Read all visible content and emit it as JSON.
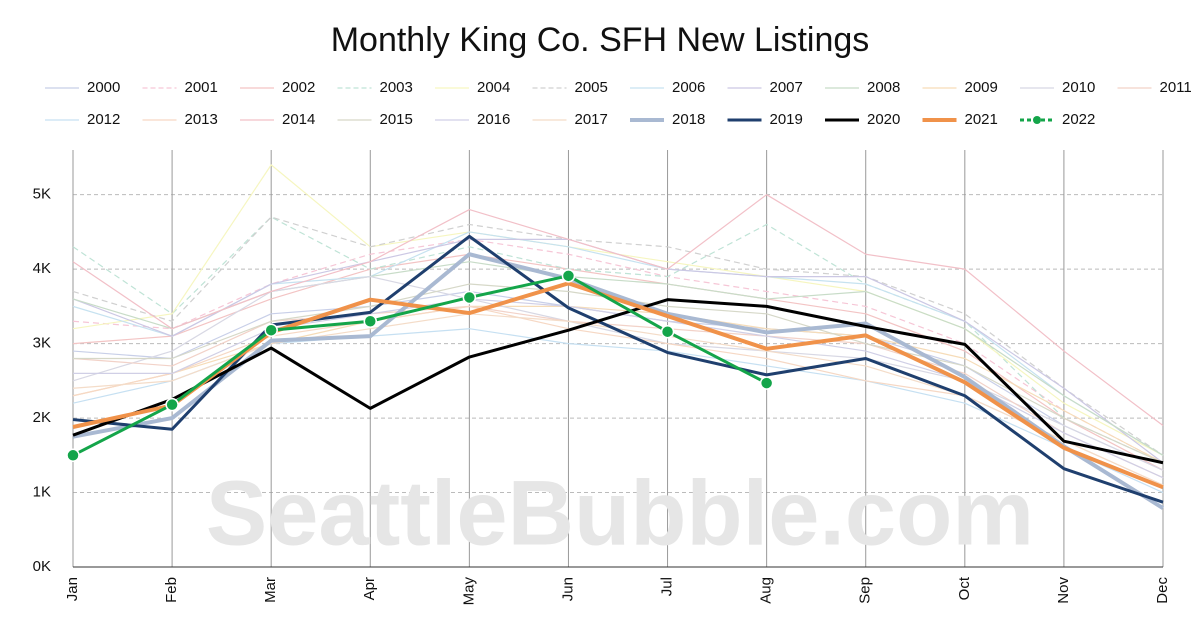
{
  "chart_data": {
    "type": "line",
    "title": "Monthly King Co. SFH New Listings",
    "watermark": "SeattleBubble.com",
    "categories": [
      "Jan",
      "Feb",
      "Mar",
      "Apr",
      "May",
      "Jun",
      "Jul",
      "Aug",
      "Sep",
      "Oct",
      "Nov",
      "Dec"
    ],
    "ylim": [
      0,
      5600
    ],
    "yticks": [
      {
        "value": 0,
        "label": "0K"
      },
      {
        "value": 1000,
        "label": "1K"
      },
      {
        "value": 2000,
        "label": "2K"
      },
      {
        "value": 3000,
        "label": "3K"
      },
      {
        "value": 4000,
        "label": "4K"
      },
      {
        "value": 5000,
        "label": "5K"
      }
    ],
    "grid": true,
    "series": [
      {
        "name": "2000",
        "color": "#c8cfe8",
        "width": 1.2,
        "values": [
          2900,
          2800,
          3400,
          3500,
          3700,
          3500,
          3300,
          3200,
          3100,
          2700,
          1900,
          1300
        ]
      },
      {
        "name": "2001",
        "color": "#f6c6d6",
        "width": 1.2,
        "dashed": true,
        "values": [
          3300,
          3200,
          3800,
          4200,
          4400,
          4200,
          3900,
          3700,
          3500,
          3000,
          2100,
          1400
        ]
      },
      {
        "name": "2002",
        "color": "#f3c4c4",
        "width": 1.2,
        "values": [
          3000,
          3100,
          3600,
          4000,
          4200,
          4000,
          3800,
          3600,
          3400,
          2900,
          2000,
          1300
        ]
      },
      {
        "name": "2003",
        "color": "#bfe3d6",
        "width": 1.2,
        "dashed": true,
        "values": [
          4300,
          3400,
          4700,
          4000,
          4300,
          4000,
          3900,
          4600,
          3800,
          3300,
          2000,
          1400
        ]
      },
      {
        "name": "2004",
        "color": "#f6f6c0",
        "width": 1.2,
        "values": [
          3200,
          3400,
          5400,
          4300,
          4500,
          4300,
          4100,
          3900,
          3700,
          3200,
          2200,
          1500
        ]
      },
      {
        "name": "2005",
        "color": "#d0d0d0",
        "width": 1.2,
        "dashed": true,
        "values": [
          3700,
          3300,
          4700,
          4300,
          4600,
          4400,
          4300,
          4000,
          3900,
          3400,
          2400,
          1500
        ]
      },
      {
        "name": "2006",
        "color": "#c6e2f0",
        "width": 1.2,
        "values": [
          3500,
          3100,
          3800,
          3900,
          4500,
          4300,
          4000,
          3900,
          3800,
          3300,
          2300,
          1500
        ]
      },
      {
        "name": "2007",
        "color": "#ccc8e4",
        "width": 1.2,
        "values": [
          3600,
          3100,
          3800,
          4100,
          4400,
          4400,
          4000,
          3900,
          3900,
          3300,
          2400,
          1400
        ]
      },
      {
        "name": "2008",
        "color": "#c8dcc8",
        "width": 1.2,
        "values": [
          3600,
          3200,
          3700,
          3900,
          4100,
          3900,
          3800,
          3600,
          3700,
          3200,
          2300,
          1500
        ]
      },
      {
        "name": "2009",
        "color": "#f6dcb8",
        "width": 1.2,
        "values": [
          2300,
          2600,
          3000,
          3300,
          3500,
          3500,
          3400,
          3200,
          3100,
          2800,
          2100,
          1400
        ]
      },
      {
        "name": "2010",
        "color": "#d8d8e4",
        "width": 1.2,
        "values": [
          2500,
          2900,
          3700,
          3900,
          3600,
          3300,
          3000,
          2900,
          2800,
          2500,
          1900,
          1300
        ]
      },
      {
        "name": "2011",
        "color": "#f2d2c8",
        "width": 1.2,
        "values": [
          2800,
          2700,
          3300,
          3400,
          3500,
          3300,
          3200,
          3100,
          3000,
          2600,
          1800,
          1200
        ]
      },
      {
        "name": "2012",
        "color": "#c6e0f2",
        "width": 1.2,
        "values": [
          2200,
          2500,
          3000,
          3100,
          3200,
          3000,
          2900,
          2700,
          2500,
          2200,
          1600,
          1000
        ]
      },
      {
        "name": "2013",
        "color": "#f6d8c4",
        "width": 1.2,
        "values": [
          2300,
          2600,
          3100,
          3300,
          3500,
          3200,
          3000,
          2800,
          2500,
          2300,
          1700,
          1100
        ]
      },
      {
        "name": "2014",
        "color": "#f2c0c8",
        "width": 1.2,
        "values": [
          4100,
          3200,
          3700,
          4100,
          4800,
          4400,
          4000,
          5000,
          4200,
          4000,
          2900,
          1900
        ]
      },
      {
        "name": "2015",
        "color": "#d6d8c8",
        "width": 1.2,
        "values": [
          2800,
          2800,
          3300,
          3500,
          3800,
          3700,
          3500,
          3400,
          3000,
          2700,
          2000,
          1400
        ]
      },
      {
        "name": "2016",
        "color": "#d0cfe6",
        "width": 1.2,
        "values": [
          2600,
          2600,
          3200,
          3400,
          3600,
          3500,
          3300,
          3100,
          2900,
          2500,
          1800,
          1200
        ]
      },
      {
        "name": "2017",
        "color": "#f4dcc8",
        "width": 1.2,
        "values": [
          2400,
          2500,
          3000,
          3200,
          3400,
          3300,
          3100,
          2900,
          2700,
          2300,
          1700,
          1100
        ]
      },
      {
        "name": "2018",
        "color": "#a9b9d2",
        "width": 4,
        "values": [
          1750,
          2000,
          3040,
          3100,
          4200,
          3870,
          3400,
          3150,
          3270,
          2550,
          1620,
          790
        ]
      },
      {
        "name": "2019",
        "color": "#1f3f6e",
        "width": 3,
        "values": [
          1980,
          1850,
          3250,
          3420,
          4440,
          3480,
          2880,
          2580,
          2800,
          2300,
          1320,
          870
        ]
      },
      {
        "name": "2020",
        "color": "#000000",
        "width": 3,
        "values": [
          1770,
          2250,
          2940,
          2130,
          2820,
          3180,
          3590,
          3500,
          3230,
          2990,
          1690,
          1400
        ]
      },
      {
        "name": "2021",
        "color": "#f0924a",
        "width": 4,
        "values": [
          1880,
          2170,
          3150,
          3590,
          3410,
          3810,
          3370,
          2930,
          3110,
          2480,
          1600,
          1070
        ]
      },
      {
        "name": "2022",
        "color": "#14a54a",
        "width": 3,
        "dashed": true,
        "marker": true,
        "values": [
          1500,
          2180,
          3180,
          3300,
          3620,
          3910,
          3160,
          2470,
          null,
          null,
          null,
          null
        ]
      }
    ]
  }
}
